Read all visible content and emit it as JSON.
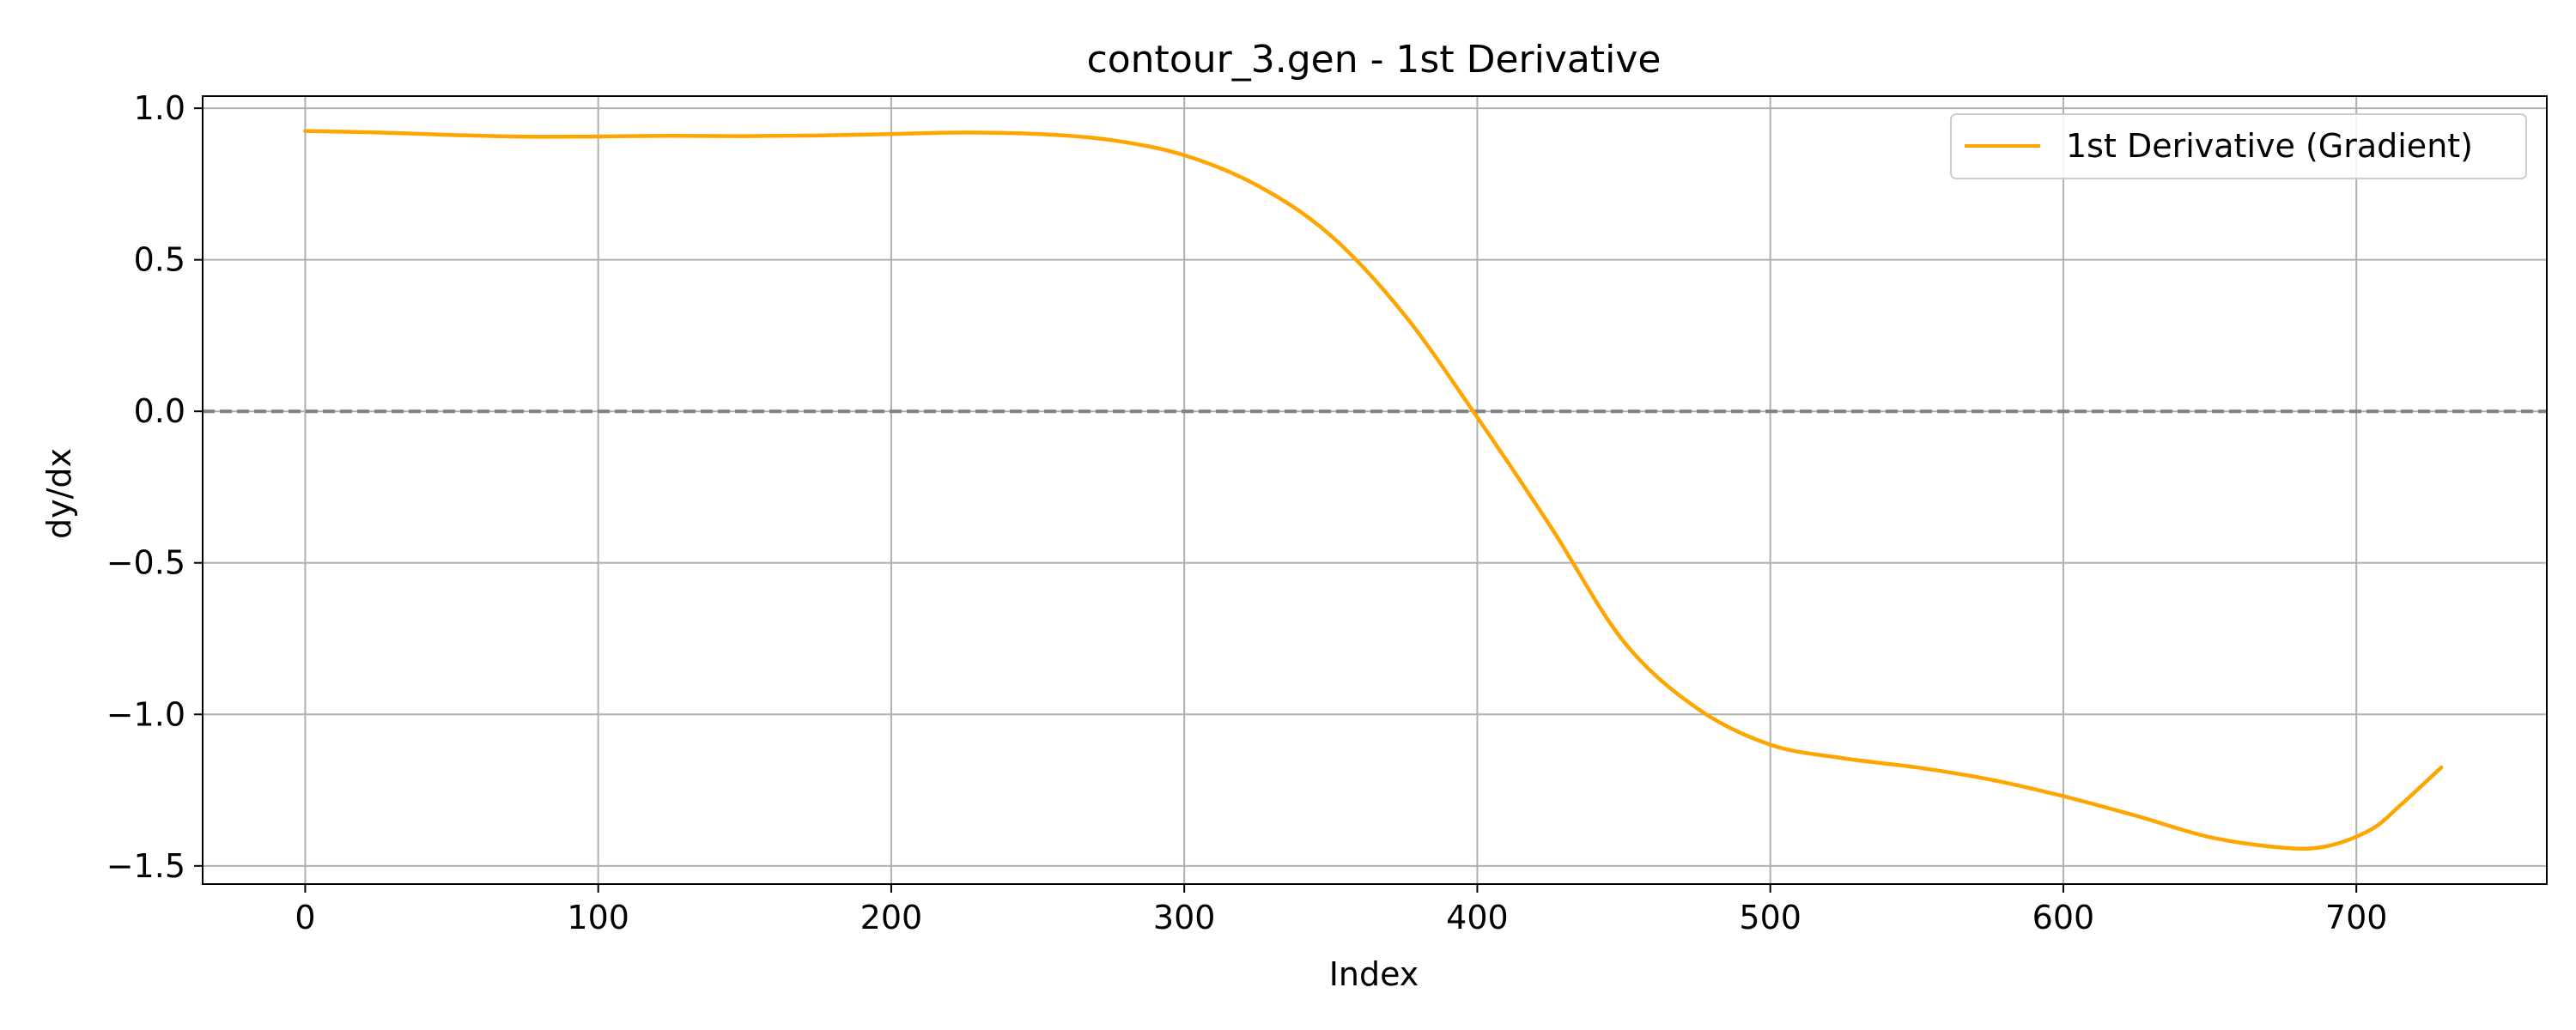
{
  "chart_data": {
    "type": "line",
    "title": "contour_3.gen - 1st Derivative",
    "xlabel": "Index",
    "ylabel": "dy/dx",
    "xlim": [
      -35,
      765
    ],
    "ylim": [
      -1.56,
      1.04
    ],
    "x_ticks": [
      0,
      100,
      200,
      300,
      400,
      500,
      600,
      700
    ],
    "y_ticks": [
      -1.5,
      -1.0,
      -0.5,
      0.0,
      0.5,
      1.0
    ],
    "x_tick_labels": [
      "0",
      "100",
      "200",
      "300",
      "400",
      "500",
      "600",
      "700"
    ],
    "y_tick_labels": [
      "−1.5",
      "−1.0",
      "−0.5",
      "0.0",
      "0.5",
      "1.0"
    ],
    "grid": true,
    "legend_position": "upper right",
    "reference_line": {
      "y": 0,
      "style": "dashed",
      "color": "#808080"
    },
    "series": [
      {
        "name": "1st Derivative (Gradient)",
        "color": "#FFA500",
        "x": [
          0,
          25,
          50,
          75,
          100,
          125,
          150,
          175,
          200,
          225,
          250,
          275,
          300,
          325,
          350,
          375,
          400,
          425,
          450,
          475,
          500,
          525,
          550,
          575,
          600,
          625,
          650,
          675,
          690,
          705,
          715,
          729
        ],
        "y": [
          0.925,
          0.92,
          0.912,
          0.906,
          0.907,
          0.909,
          0.908,
          0.91,
          0.915,
          0.92,
          0.915,
          0.895,
          0.845,
          0.745,
          0.58,
          0.32,
          -0.02,
          -0.38,
          -0.76,
          -0.98,
          -1.1,
          -1.145,
          -1.175,
          -1.215,
          -1.27,
          -1.335,
          -1.405,
          -1.44,
          -1.435,
          -1.38,
          -1.3,
          -1.175
        ]
      }
    ]
  }
}
